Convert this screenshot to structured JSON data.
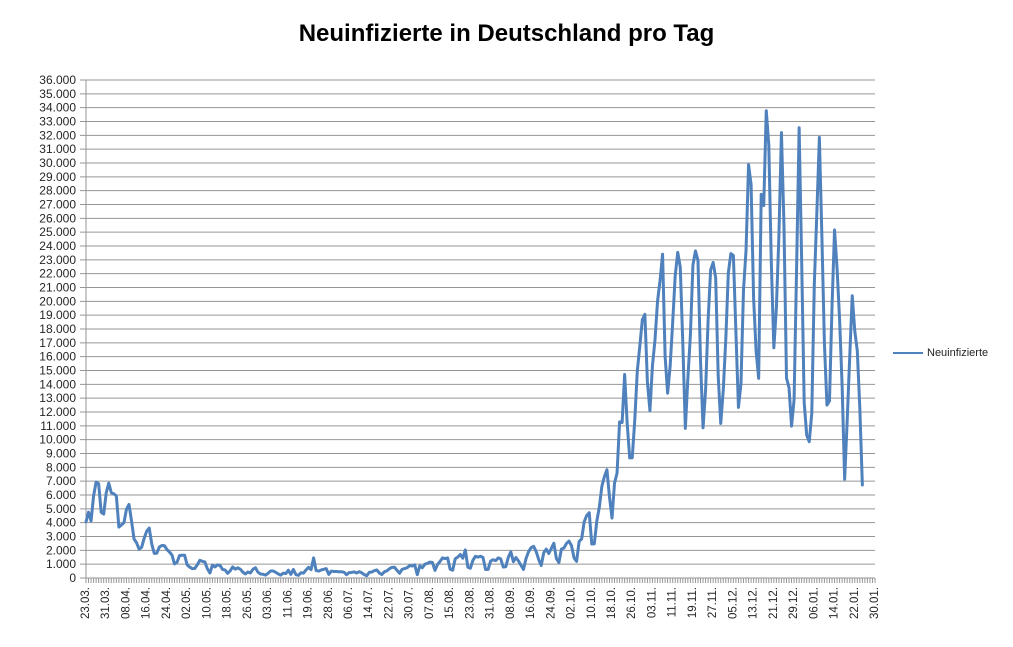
{
  "chart_data": {
    "type": "line",
    "title": "Neuinfizierte in Deutschland pro Tag",
    "xlabel": "",
    "ylabel": "",
    "ylim": [
      0,
      36000
    ],
    "y_tick_step": 1000,
    "grid": true,
    "legend_position": "right-middle",
    "colors": {
      "series": "#4F81BD",
      "gridline": "#969696",
      "axis": "#969696",
      "text": "#262626",
      "title": "#000000",
      "background": "#FFFFFF"
    },
    "y_tick_labels": [
      "0",
      "1.000",
      "2.000",
      "3.000",
      "4.000",
      "5.000",
      "6.000",
      "7.000",
      "8.000",
      "9.000",
      "10.000",
      "11.000",
      "12.000",
      "13.000",
      "14.000",
      "15.000",
      "16.000",
      "17.000",
      "18.000",
      "19.000",
      "20.000",
      "21.000",
      "22.000",
      "23.000",
      "24.000",
      "25.000",
      "26.000",
      "27.000",
      "28.000",
      "29.000",
      "30.000",
      "31.000",
      "32.000",
      "33.000",
      "34.000",
      "35.000",
      "36.000"
    ],
    "x_tick_labels": [
      "23.03.",
      "31.03.",
      "08.04.",
      "16.04.",
      "24.04.",
      "02.05.",
      "10.05.",
      "18.05.",
      "26.05.",
      "03.06.",
      "11.06.",
      "19.06.",
      "28.06.",
      "06.07.",
      "14.07.",
      "22.07.",
      "30.07.",
      "07.08.",
      "15.08.",
      "23.08.",
      "31.08.",
      "08.09.",
      "16.09.",
      "24.09.",
      "02.10.",
      "10.10.",
      "18.10.",
      "26.10.",
      "03.11.",
      "11.11.",
      "19.11.",
      "27.11.",
      "05.12.",
      "13.12.",
      "21.12.",
      "29.12.",
      "06.01.",
      "14.01.",
      "22.01.",
      "30.01."
    ],
    "x_label_every_n_days": 8,
    "axis_total_days": 313,
    "series": [
      {
        "name": "Neuinfizierte",
        "values": [
          4060,
          4760,
          4120,
          5940,
          6930,
          6820,
          4750,
          4620,
          6160,
          6860,
          6170,
          6080,
          5940,
          3680,
          3830,
          4000,
          4970,
          5320,
          4130,
          2820,
          2540,
          2080,
          2220,
          2870,
          3380,
          3610,
          2460,
          1780,
          1790,
          2240,
          2350,
          2340,
          2060,
          1880,
          1660,
          1020,
          1140,
          1630,
          1640,
          1640,
          950,
          790,
          680,
          690,
          950,
          1280,
          1210,
          1160,
          670,
          360,
          930,
          800,
          950,
          910,
          620,
          580,
          340,
          510,
          800,
          640,
          740,
          640,
          430,
          290,
          430,
          360,
          630,
          740,
          420,
          290,
          270,
          210,
          340,
          510,
          510,
          410,
          300,
          210,
          350,
          320,
          560,
          260,
          620,
          250,
          190,
          380,
          350,
          580,
          770,
          600,
          1450,
          540,
          500,
          580,
          630,
          680,
          260,
          500,
          470,
          470,
          450,
          450,
          420,
          240,
          390,
          400,
          440,
          360,
          460,
          380,
          250,
          160,
          410,
          430,
          530,
          580,
          360,
          250,
          450,
          520,
          670,
          770,
          780,
          550,
          340,
          630,
          680,
          740,
          900,
          870,
          950,
          240,
          880,
          740,
          1000,
          1050,
          1150,
          1120,
          550,
          970,
          1200,
          1450,
          1400,
          1450,
          630,
          560,
          1390,
          1510,
          1700,
          1430,
          2030,
          780,
          710,
          1280,
          1570,
          1510,
          1570,
          1480,
          610,
          620,
          1220,
          1320,
          1260,
          1450,
          1380,
          790,
          810,
          1500,
          1890,
          1180,
          1480,
          1240,
          920,
          620,
          1410,
          1900,
          2190,
          2290,
          1920,
          1340,
          900,
          1820,
          2090,
          1770,
          2140,
          2510,
          1410,
          1110,
          2090,
          2170,
          2500,
          2670,
          2330,
          1450,
          1200,
          2640,
          2830,
          4060,
          4520,
          4720,
          2460,
          2470,
          4120,
          5130,
          6640,
          7330,
          7830,
          5860,
          4330,
          6870,
          7590,
          11290,
          11240,
          14710,
          11180,
          8680,
          8690,
          11410,
          14960,
          16770,
          18680,
          19060,
          14180,
          12100,
          15350,
          17210,
          19990,
          21510,
          23400,
          16020,
          13360,
          15330,
          18490,
          21870,
          23540,
          22460,
          16950,
          10820,
          14420,
          17560,
          22610,
          23650,
          22960,
          15740,
          10860,
          13550,
          18630,
          22270,
          22810,
          21700,
          14610,
          11170,
          13600,
          17270,
          22050,
          23450,
          23320,
          17770,
          12330,
          14050,
          20820,
          23680,
          29880,
          28440,
          20200,
          16360,
          14430,
          27730,
          26920,
          33780,
          31300,
          22770,
          16640,
          19530,
          24740,
          32200,
          25530,
          14460,
          13760,
          10980,
          12890,
          22460,
          32550,
          22920,
          12690,
          10320,
          9850,
          11900,
          21240,
          26390,
          31850,
          24690,
          16950,
          12500,
          12800,
          19600,
          25160,
          22370,
          18680,
          13880,
          7140,
          11370,
          15970,
          20400,
          17860,
          16420,
          12260,
          6730
        ]
      }
    ]
  }
}
